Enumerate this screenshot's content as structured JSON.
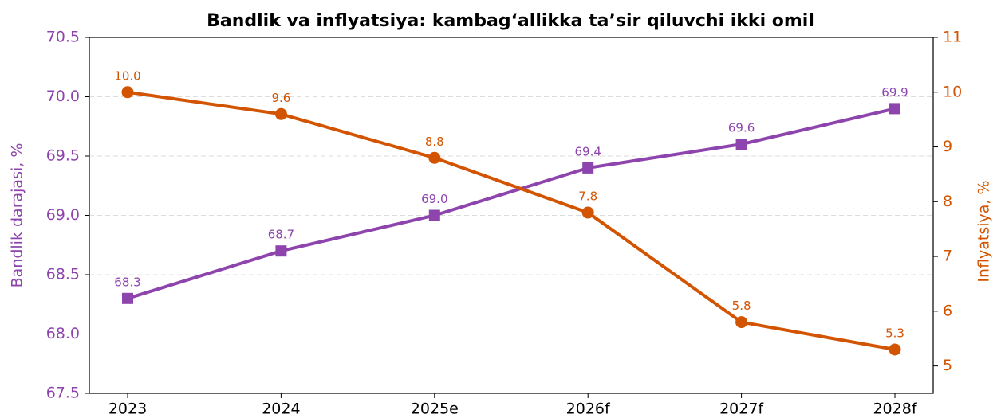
{
  "chart_data": {
    "type": "line",
    "title": "Bandlik va inflyatsiya: kambag‘allikka ta’sir qiluvchi ikki omil",
    "y_label": "Bandlik darajasi, %",
    "y2_label": "Inflyatsiya, %",
    "categories": [
      "2023",
      "2024",
      "2025e",
      "2026f",
      "2027f",
      "2028f"
    ],
    "ylim": [
      67.5,
      70.5
    ],
    "yticks": [
      67.5,
      {
        "value": 68.0,
        "label": "68.0"
      },
      68.5,
      {
        "value": 69.0,
        "label": "69.0"
      },
      69.5,
      {
        "value": 70.0,
        "label": "70.0"
      },
      70.5
    ],
    "y2lim": [
      4.5,
      11
    ],
    "y2ticks": [
      5,
      6,
      7,
      8,
      9,
      10,
      11
    ],
    "grid": true,
    "series": [
      {
        "name": "Bandlik darajasi",
        "color": "#8e44ad",
        "marker": "square",
        "values": [
          68.3,
          68.7,
          69.0,
          69.4,
          69.6,
          69.9
        ],
        "value_labels": [
          "68.3",
          "68.7",
          "69.0",
          "69.4",
          "69.6",
          "69.9"
        ]
      },
      {
        "name": "Inflyatsiya",
        "color": "#d35400",
        "marker": "circle",
        "axis": "y2",
        "values": [
          10.0,
          9.6,
          8.8,
          7.8,
          5.8,
          5.3
        ],
        "value_labels": [
          "10.0",
          "9.6",
          "8.8",
          "7.8",
          "5.8",
          "5.3"
        ]
      }
    ]
  }
}
